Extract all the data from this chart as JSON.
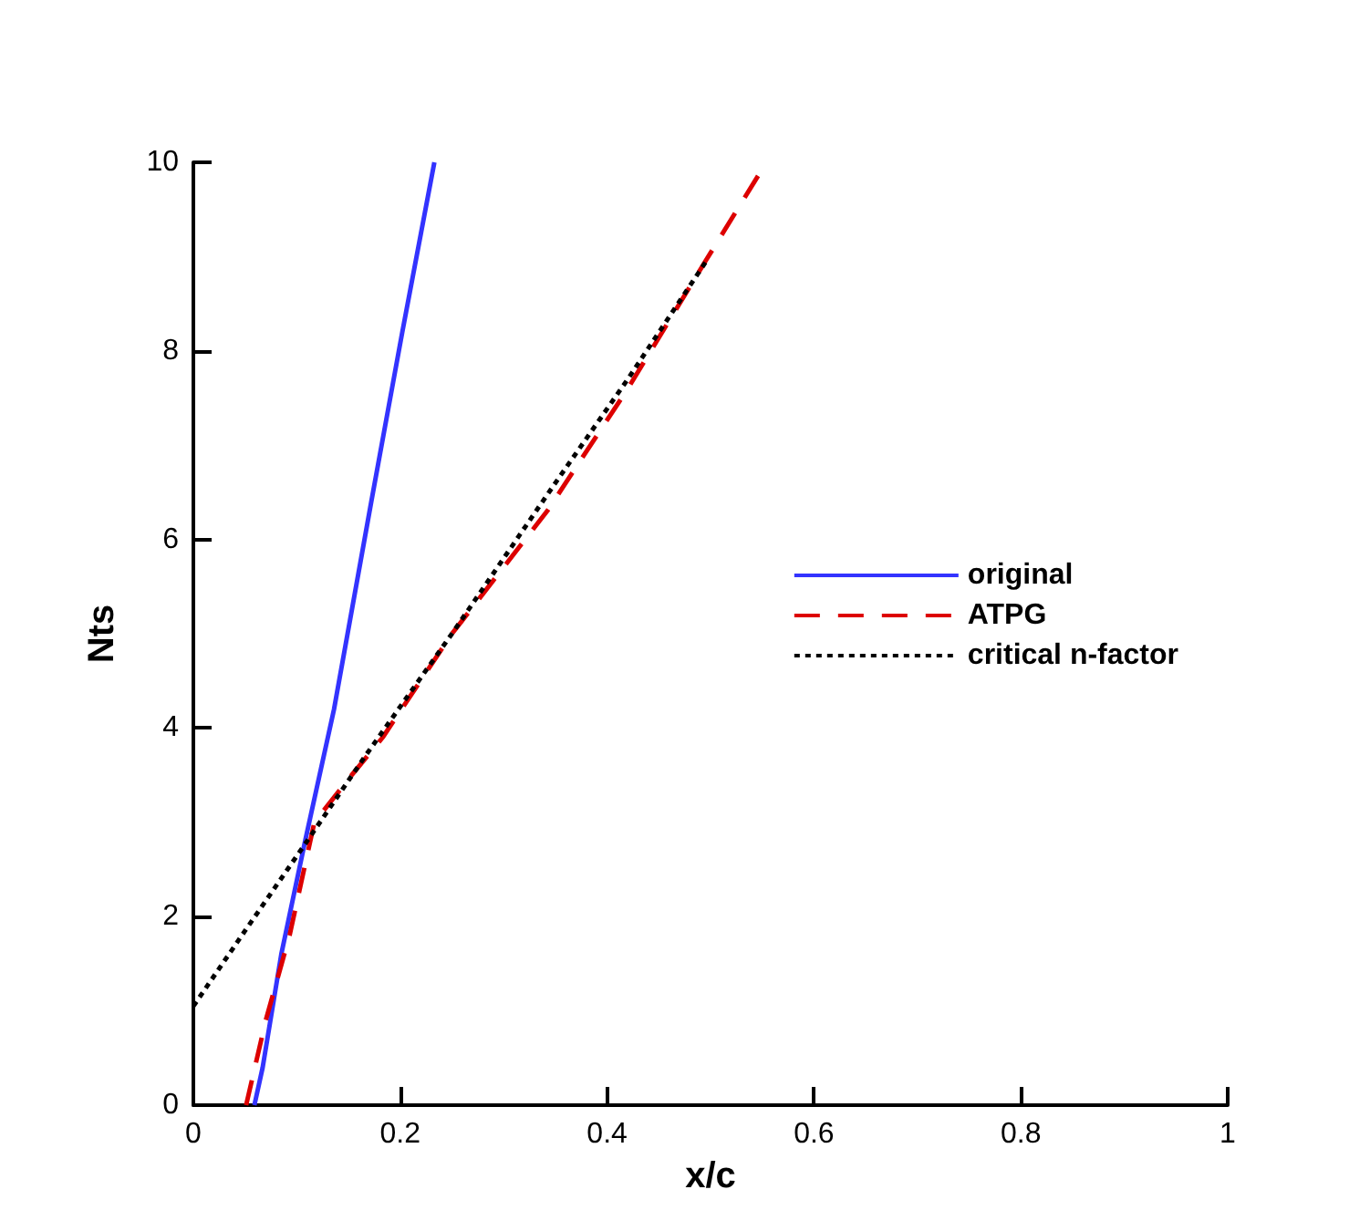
{
  "chart_data": {
    "type": "line",
    "xlabel": "x/c",
    "ylabel": "Nts",
    "xlim": [
      0,
      1
    ],
    "xticks": [
      0,
      0.2,
      0.4,
      0.6,
      0.8,
      1
    ],
    "ylim": [
      0,
      10
    ],
    "yticks": [
      0,
      2,
      4,
      6,
      8,
      10
    ],
    "grid": false,
    "legend": "right",
    "marker": "none",
    "series": [
      {
        "name": "original",
        "color": "#3333ff",
        "line_style": "solid",
        "x": [
          0.059,
          0.067,
          0.085,
          0.108,
          0.136,
          0.172,
          0.202,
          0.233
        ],
        "values": [
          0,
          0.4,
          1.6,
          2.8,
          4.2,
          6.4,
          8.2,
          10
        ]
      },
      {
        "name": "ATPG",
        "color": "#dd0000",
        "line_style": "dashed",
        "x": [
          0.051,
          0.07,
          0.093,
          0.117,
          0.153,
          0.183,
          0.25,
          0.342,
          0.42,
          0.495,
          0.554
        ],
        "values": [
          0,
          0.9,
          1.8,
          3,
          3.5,
          3.9,
          5,
          6.3,
          7.6,
          8.95,
          10
        ]
      },
      {
        "name": "critical n-factor",
        "color": "#000000",
        "line_style": "dotted",
        "x": [
          0,
          0.05,
          0.108,
          0.166,
          0.25,
          0.35,
          0.42,
          0.497
        ],
        "values": [
          1.05,
          1.85,
          2.77,
          3.7,
          5,
          6.6,
          7.7,
          8.97
        ]
      }
    ]
  }
}
